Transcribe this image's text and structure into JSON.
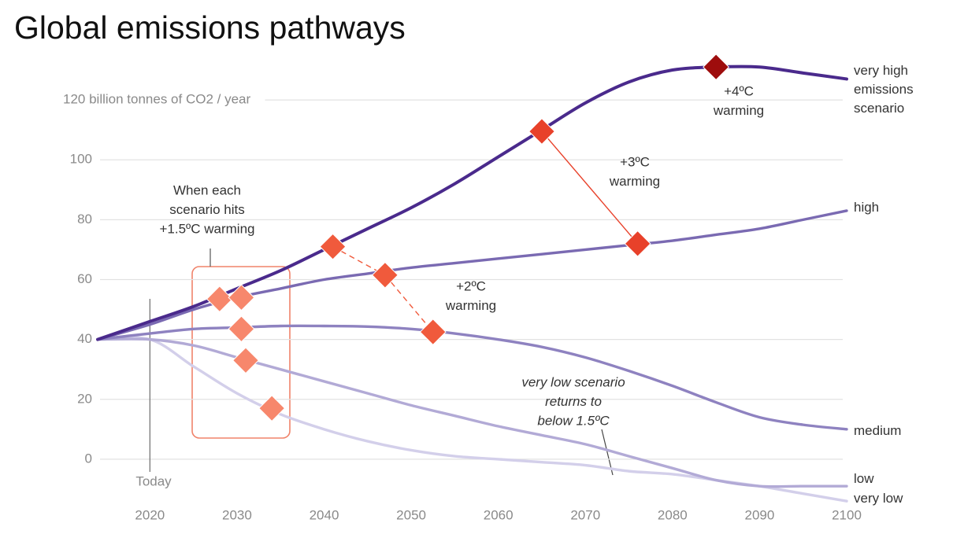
{
  "chart_data": {
    "type": "line",
    "title": "Global emissions pathways",
    "x": [
      2014,
      2020,
      2025,
      2030,
      2035,
      2040,
      2045,
      2050,
      2055,
      2060,
      2065,
      2070,
      2075,
      2080,
      2085,
      2090,
      2095,
      2100
    ],
    "series": [
      {
        "name": "very high emissions scenario",
        "color": "#4a2a8c",
        "values": [
          40,
          46,
          51,
          57,
          63,
          70,
          77,
          84,
          92,
          101,
          110,
          119,
          126,
          130,
          131,
          131,
          129,
          127
        ]
      },
      {
        "name": "high",
        "color": "#7a6ab2",
        "values": [
          40,
          45,
          50,
          54,
          57,
          60,
          62,
          64,
          65.5,
          67,
          68.5,
          70,
          71.5,
          73,
          75,
          77,
          80,
          83
        ]
      },
      {
        "name": "medium",
        "color": "#8e82c0",
        "values": [
          40,
          42,
          43.5,
          44,
          44.5,
          44.5,
          44.3,
          43.5,
          42,
          40,
          37.5,
          34,
          29.5,
          24.5,
          19,
          14,
          11.5,
          10
        ]
      },
      {
        "name": "low",
        "color": "#b2aad6",
        "values": [
          40,
          40,
          38,
          34,
          30,
          26,
          22,
          18,
          14.5,
          11,
          8,
          5,
          1,
          -3,
          -7,
          -9,
          -9,
          -9
        ]
      },
      {
        "name": "very low",
        "color": "#d3cfea",
        "values": [
          40,
          40,
          31,
          22,
          15,
          10,
          6,
          3,
          1,
          0,
          -1,
          -2,
          -4,
          -5,
          -7,
          -9,
          -11.5,
          -14
        ]
      }
    ],
    "markers": [
      {
        "color": "#f7876c",
        "x": [
          2028,
          2030.5,
          2030.5,
          2031,
          2034
        ],
        "y": [
          53.5,
          54,
          43.5,
          33,
          17
        ],
        "connector": null
      },
      {
        "color": "#f05a3c",
        "x": [
          2041,
          2047,
          2052.5
        ],
        "y": [
          71,
          61.5,
          42.5
        ],
        "connector": "dashed"
      },
      {
        "color": "#e8412a",
        "x": [
          2065,
          2076
        ],
        "y": [
          109.5,
          72
        ],
        "connector": "solid"
      },
      {
        "color": "#9e0d0d",
        "x": [
          2085
        ],
        "y": [
          131
        ],
        "connector": null
      }
    ],
    "annotations": [
      {
        "lines": [
          "When each",
          "scenario hits",
          "+1.5ºC warming"
        ]
      },
      {
        "lines": [
          "+2ºC",
          "warming"
        ]
      },
      {
        "lines": [
          "+3ºC",
          "warming"
        ]
      },
      {
        "lines": [
          "+4ºC",
          "warming"
        ]
      },
      {
        "lines": [
          "very low scenario",
          "returns to",
          "below 1.5ºC"
        ]
      },
      {
        "lines": [
          "Today"
        ]
      }
    ],
    "xlim": [
      2014,
      2100
    ],
    "xticks": [
      2020,
      2030,
      2040,
      2050,
      2060,
      2070,
      2080,
      2090,
      2100
    ],
    "ylim": [
      -15,
      135
    ],
    "yticks": [
      0,
      20,
      40,
      60,
      80,
      100,
      {
        "value": 120,
        "label": "120 billion tonnes of CO2 / year"
      }
    ],
    "grid": true
  }
}
